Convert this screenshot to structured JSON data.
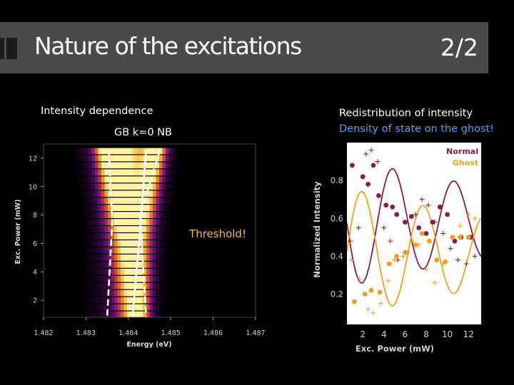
{
  "slide": {
    "title": "Nature of the excitations",
    "page": "2/2"
  },
  "captions": {
    "left_heading": "Intensity dependence",
    "left_labels": "GB  k=0  NB",
    "right_heading": "Redistribution of intensity",
    "right_subheading": "Density of state on the ghost!"
  },
  "chart_data": [
    {
      "type": "heatmap",
      "xlabel": "Energy (eV)",
      "ylabel": "Exc. Power (mW)",
      "xlim": [
        1.482,
        1.487
      ],
      "ylim": [
        0.8,
        13.0
      ],
      "xticks": [
        1.482,
        1.483,
        1.484,
        1.485,
        1.486,
        1.487
      ],
      "yticks": [
        2,
        4,
        6,
        8,
        10,
        12
      ],
      "annotation": "Threshold!",
      "colormap": [
        "#000000",
        "#3a0850",
        "#8a1a78",
        "#d84a3a",
        "#f7a418",
        "#fff3a0"
      ],
      "rows_mW": [
        1.0,
        1.5,
        2.0,
        2.5,
        3.0,
        3.5,
        4.0,
        4.5,
        5.0,
        5.5,
        6.0,
        6.5,
        7.0,
        7.5,
        8.0,
        8.5,
        9.0,
        9.5,
        10.0,
        10.5,
        11.0,
        11.5,
        12.0,
        12.5
      ],
      "guide_lines": [
        {
          "style": "dashed",
          "points": [
            [
              1.48354,
              12.6
            ],
            [
              1.48362,
              7.5
            ],
            [
              1.4835,
              0.8
            ]
          ]
        },
        {
          "style": "solid",
          "points": [
            [
              1.48442,
              12.6
            ],
            [
              1.48428,
              7.0
            ],
            [
              1.4841,
              0.8
            ]
          ]
        },
        {
          "style": "dashed",
          "points": [
            [
              1.48475,
              12.6
            ],
            [
              1.48428,
              8.0
            ],
            [
              1.48442,
              0.8
            ]
          ]
        }
      ]
    },
    {
      "type": "scatter",
      "xlabel": "Exc. Power (mW)",
      "ylabel": "Normalized Intensity",
      "xlim": [
        0.5,
        13.2
      ],
      "ylim": [
        0.04,
        1.0
      ],
      "xticks": [
        2,
        4,
        6,
        8,
        10,
        12
      ],
      "yticks": [
        0.2,
        0.4,
        0.6,
        0.8
      ],
      "legend_position": "top-right",
      "series": [
        {
          "name": "Normal",
          "color": "#8a1a4a",
          "markers": "dots",
          "points": [
            [
              1.0,
              0.88
            ],
            [
              2.0,
              0.82
            ],
            [
              2.5,
              0.78
            ],
            [
              3.0,
              0.88
            ],
            [
              3.5,
              0.72
            ],
            [
              4.2,
              0.67
            ],
            [
              4.8,
              0.66
            ],
            [
              5.2,
              0.62
            ],
            [
              6.0,
              0.58
            ],
            [
              6.6,
              0.61
            ],
            [
              7.3,
              0.55
            ],
            [
              8.0,
              0.52
            ],
            [
              8.6,
              0.58
            ],
            [
              9.3,
              0.66
            ],
            [
              10.0,
              0.62
            ],
            [
              10.7,
              0.48
            ],
            [
              11.3,
              0.5
            ],
            [
              12.2,
              0.5
            ]
          ],
          "crosses": [
            [
              0.8,
              0.48
            ],
            [
              1.6,
              0.55
            ],
            [
              2.3,
              0.94
            ],
            [
              2.8,
              0.96
            ],
            [
              3.4,
              0.9
            ],
            [
              4.0,
              0.55
            ],
            [
              4.6,
              0.48
            ],
            [
              5.3,
              0.38
            ],
            [
              6.0,
              0.42
            ],
            [
              7.0,
              0.62
            ],
            [
              7.6,
              0.7
            ],
            [
              8.2,
              0.67
            ],
            [
              8.8,
              0.58
            ],
            [
              9.6,
              0.52
            ],
            [
              10.3,
              0.44
            ],
            [
              11.0,
              0.38
            ],
            [
              11.8,
              0.36
            ],
            [
              12.6,
              0.4
            ]
          ],
          "fit_curve": {
            "mean": 0.58,
            "amplitude": 0.35,
            "period_mW": 5.8,
            "phase_deg": 60,
            "damping": 0.045
          }
        },
        {
          "name": "Ghost",
          "color": "#f0a020",
          "markers": "dots",
          "points": [
            [
              1.2,
              0.16
            ],
            [
              2.2,
              0.2
            ],
            [
              2.8,
              0.22
            ],
            [
              3.6,
              0.21
            ],
            [
              4.5,
              0.36
            ],
            [
              5.2,
              0.4
            ],
            [
              6.2,
              0.42
            ],
            [
              7.0,
              0.46
            ],
            [
              7.6,
              0.52
            ],
            [
              8.3,
              0.48
            ],
            [
              9.0,
              0.38
            ],
            [
              9.8,
              0.37
            ],
            [
              10.5,
              0.5
            ],
            [
              11.2,
              0.5
            ],
            [
              12.0,
              0.5
            ]
          ],
          "crosses": [
            [
              0.9,
              0.38
            ],
            [
              1.7,
              0.28
            ],
            [
              2.5,
              0.12
            ],
            [
              3.0,
              0.1
            ],
            [
              3.7,
              0.15
            ],
            [
              4.4,
              0.27
            ],
            [
              5.0,
              0.38
            ],
            [
              5.8,
              0.4
            ],
            [
              6.6,
              0.48
            ],
            [
              7.3,
              0.46
            ],
            [
              8.0,
              0.33
            ],
            [
              8.8,
              0.26
            ],
            [
              9.6,
              0.36
            ],
            [
              10.4,
              0.5
            ],
            [
              11.2,
              0.56
            ],
            [
              12.0,
              0.62
            ],
            [
              12.6,
              0.6
            ]
          ],
          "fit_curve": {
            "mean": 0.42,
            "amplitude": 0.35,
            "period_mW": 5.8,
            "phase_deg": 240,
            "damping": 0.045
          }
        }
      ]
    }
  ]
}
